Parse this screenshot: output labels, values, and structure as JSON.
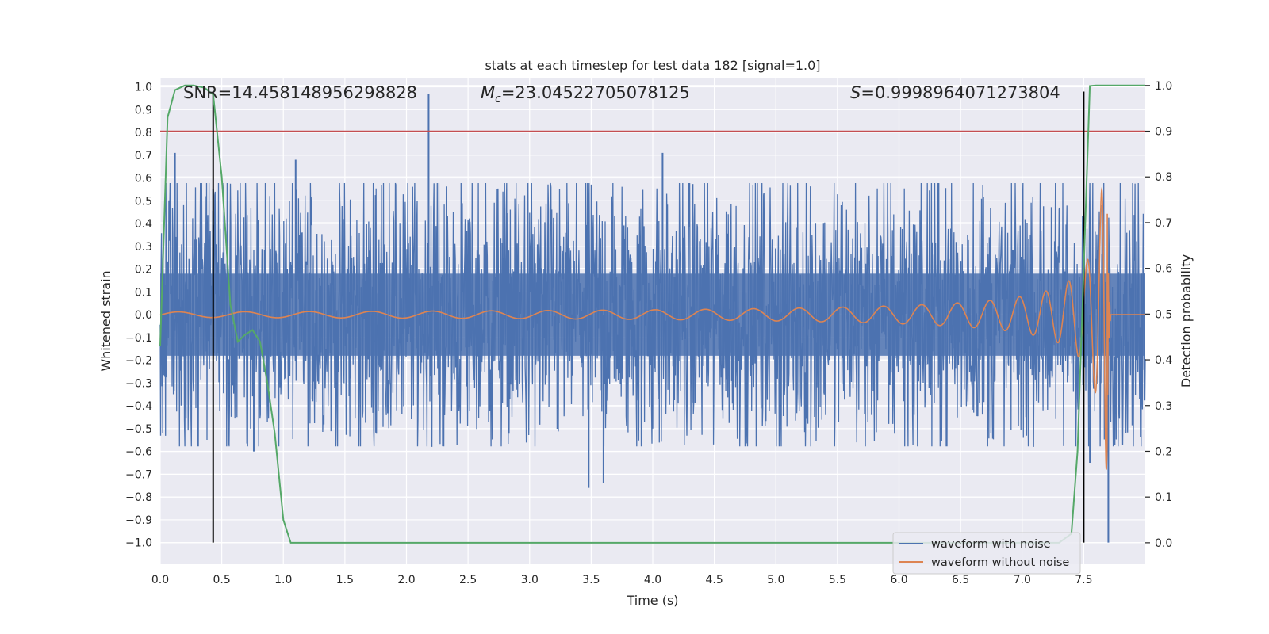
{
  "chart_data": {
    "type": "line",
    "title": "stats at each timestep for test data 182 [signal=1.0]",
    "xlabel": "Time (s)",
    "ylabel": "Whitened strain",
    "y2label": "Detection probability",
    "xlim": [
      0.0,
      8.0
    ],
    "ylim": [
      -1.095,
      1.04
    ],
    "y2lim": [
      -0.047,
      1.017
    ],
    "grid": true,
    "xticks": [
      0.0,
      0.5,
      1.0,
      1.5,
      2.0,
      2.5,
      3.0,
      3.5,
      4.0,
      4.5,
      5.0,
      5.5,
      6.0,
      6.5,
      7.0,
      7.5
    ],
    "xtick_labels": [
      "0.0",
      "0.5",
      "1.0",
      "1.5",
      "2.0",
      "2.5",
      "3.0",
      "3.5",
      "4.0",
      "4.5",
      "5.0",
      "5.5",
      "6.0",
      "6.5",
      "7.0",
      "7.5"
    ],
    "yticks": [
      1.0,
      0.9,
      0.8,
      0.7,
      0.6,
      0.5,
      0.4,
      0.3,
      0.2,
      0.1,
      0.0,
      -0.1,
      -0.2,
      -0.3,
      -0.4,
      -0.5,
      -0.6,
      -0.7,
      -0.8,
      -0.9,
      -1.0
    ],
    "ytick_labels": [
      "1.0",
      "0.9",
      "0.8",
      "0.7",
      "0.6",
      "0.5",
      "0.4",
      "0.3",
      "0.2",
      "0.1",
      "0.0",
      "−0.1",
      "−0.2",
      "−0.3",
      "−0.4",
      "−0.5",
      "−0.6",
      "−0.7",
      "−0.8",
      "−0.9",
      "−1.0"
    ],
    "y2ticks": [
      1.0,
      0.9,
      0.8,
      0.7,
      0.6,
      0.5,
      0.4,
      0.3,
      0.2,
      0.1,
      0.0
    ],
    "y2tick_labels": [
      "1.0",
      "0.9",
      "0.8",
      "0.7",
      "0.6",
      "0.5",
      "0.4",
      "0.3",
      "0.2",
      "0.1",
      "0.0"
    ],
    "annotations": {
      "snr": "SNR=14.458148956298828",
      "mc_symbol": "M",
      "mc_sub": "c",
      "mc_value": "=23.04522705078125",
      "s_symbol": "S",
      "s_value": "=0.9998964071273804"
    },
    "threshold": {
      "value": 0.9,
      "axis": "y2",
      "color": "#c44e52"
    },
    "vlines": [
      {
        "x": 0.43,
        "ymin": -1.0,
        "ymax": 1.0,
        "color": "#000000"
      },
      {
        "x": 7.5,
        "ymin": -1.0,
        "ymax": 1.0,
        "color": "#000000"
      }
    ],
    "series": [
      {
        "name": "waveform with noise",
        "color": "#4c72b0",
        "kind": "noise",
        "envelope_low": -0.55,
        "envelope_high": 0.55,
        "spikes": [
          {
            "x": 0.12,
            "y": 0.71
          },
          {
            "x": 0.43,
            "y": 0.55
          },
          {
            "x": 0.76,
            "y": -0.6
          },
          {
            "x": 1.1,
            "y": 0.68
          },
          {
            "x": 2.18,
            "y": 0.97
          },
          {
            "x": 3.48,
            "y": -0.76
          },
          {
            "x": 3.6,
            "y": -0.74
          },
          {
            "x": 4.08,
            "y": 0.71
          },
          {
            "x": 7.55,
            "y": -0.65
          },
          {
            "x": 7.65,
            "y": 0.48
          },
          {
            "x": 7.7,
            "y": -1.0
          }
        ]
      },
      {
        "name": "waveform without noise",
        "color": "#dd8452",
        "kind": "chirp",
        "t_merger": 7.69,
        "peak_amplitude": 0.68,
        "ring_end": 7.72
      },
      {
        "name": "Detection probability",
        "color": "#55a868",
        "axis": "y2",
        "x": [
          0.0,
          0.06,
          0.12,
          0.2,
          0.27,
          0.36,
          0.43,
          0.5,
          0.57,
          0.63,
          0.69,
          0.75,
          0.81,
          0.87,
          0.93,
          1.0,
          1.06,
          1.12,
          1.5,
          2.0,
          2.5,
          3.0,
          3.5,
          4.0,
          4.5,
          5.0,
          5.5,
          5.7,
          6.0,
          6.5,
          7.0,
          7.3,
          7.4,
          7.45,
          7.5,
          7.55,
          7.6,
          8.0
        ],
        "y": [
          0.43,
          0.93,
          0.99,
          1.0,
          1.0,
          0.995,
          0.98,
          0.8,
          0.52,
          0.44,
          0.455,
          0.465,
          0.44,
          0.35,
          0.24,
          0.05,
          0.0,
          0.0,
          0.0,
          0.0,
          0.0,
          0.0,
          0.0,
          0.0,
          0.0,
          0.0,
          0.0,
          0.0,
          0.0,
          0.0,
          0.0,
          0.0,
          0.02,
          0.2,
          0.6,
          0.999,
          1.0,
          1.0
        ]
      }
    ],
    "legend": {
      "placement": "lower-right",
      "entries": [
        {
          "label": "waveform with noise",
          "color": "#4c72b0"
        },
        {
          "label": "waveform without noise",
          "color": "#dd8452"
        }
      ]
    }
  }
}
